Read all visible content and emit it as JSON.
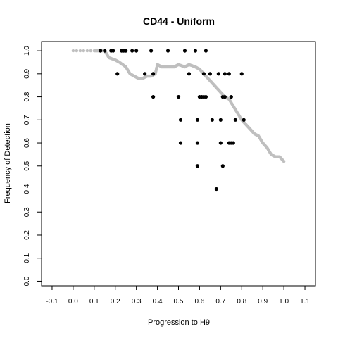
{
  "chart_data": {
    "type": "scatter",
    "title": "CD44 - Uniform",
    "xlabel": "Progression to H9",
    "ylabel": "Frequency of Detection",
    "xlim": [
      -0.15,
      1.15
    ],
    "ylim": [
      -0.02,
      1.04
    ],
    "xticks": [
      "-0.1",
      "0.0",
      "0.1",
      "0.2",
      "0.3",
      "0.4",
      "0.5",
      "0.6",
      "0.7",
      "0.8",
      "0.9",
      "1.0",
      "1.1"
    ],
    "yticks": [
      "0.0",
      "0.1",
      "0.2",
      "0.3",
      "0.4",
      "0.5",
      "0.6",
      "0.7",
      "0.8",
      "0.9",
      "1.0"
    ],
    "grid": false,
    "colors": {
      "points": "#000000",
      "trend": "#bfbfbf",
      "frame": "#000000"
    },
    "series": [
      {
        "kind": "points",
        "x": [
          0.13,
          0.15,
          0.18,
          0.19,
          0.21,
          0.23,
          0.24,
          0.25,
          0.28,
          0.3,
          0.34,
          0.37,
          0.38,
          0.38,
          0.45,
          0.5,
          0.51,
          0.51,
          0.53,
          0.55,
          0.58,
          0.59,
          0.59,
          0.59,
          0.6,
          0.61,
          0.62,
          0.62,
          0.63,
          0.63,
          0.65,
          0.66,
          0.68,
          0.69,
          0.7,
          0.7,
          0.71,
          0.71,
          0.72,
          0.72,
          0.74,
          0.74,
          0.75,
          0.75,
          0.76,
          0.77,
          0.8,
          0.81
        ],
        "y": [
          1.0,
          1.0,
          1.0,
          1.0,
          0.9,
          1.0,
          1.0,
          1.0,
          1.0,
          1.0,
          0.9,
          1.0,
          0.8,
          0.9,
          1.0,
          0.8,
          0.7,
          0.6,
          1.0,
          0.9,
          1.0,
          0.5,
          0.6,
          0.7,
          0.8,
          0.8,
          0.8,
          0.9,
          0.8,
          1.0,
          0.9,
          0.7,
          0.4,
          0.9,
          0.6,
          0.7,
          0.5,
          0.8,
          0.8,
          0.9,
          0.6,
          0.9,
          0.8,
          0.6,
          0.6,
          0.7,
          0.9,
          0.7
        ]
      },
      {
        "kind": "trend",
        "x": [
          0.0,
          0.1,
          0.12,
          0.15,
          0.17,
          0.2,
          0.22,
          0.25,
          0.27,
          0.29,
          0.31,
          0.33,
          0.35,
          0.37,
          0.39,
          0.4,
          0.42,
          0.45,
          0.48,
          0.5,
          0.53,
          0.55,
          0.58,
          0.6,
          0.62,
          0.64,
          0.66,
          0.68,
          0.7,
          0.72,
          0.74,
          0.76,
          0.78,
          0.8,
          0.82,
          0.84,
          0.86,
          0.88,
          0.9,
          0.92,
          0.94,
          0.96,
          0.98,
          1.0
        ],
        "y": [
          1.0,
          1.0,
          1.0,
          1.0,
          0.97,
          0.96,
          0.95,
          0.93,
          0.9,
          0.89,
          0.88,
          0.88,
          0.89,
          0.89,
          0.9,
          0.94,
          0.93,
          0.93,
          0.93,
          0.94,
          0.93,
          0.94,
          0.93,
          0.92,
          0.9,
          0.88,
          0.86,
          0.84,
          0.82,
          0.8,
          0.79,
          0.76,
          0.73,
          0.7,
          0.68,
          0.66,
          0.64,
          0.63,
          0.6,
          0.58,
          0.55,
          0.54,
          0.54,
          0.52
        ]
      }
    ]
  }
}
